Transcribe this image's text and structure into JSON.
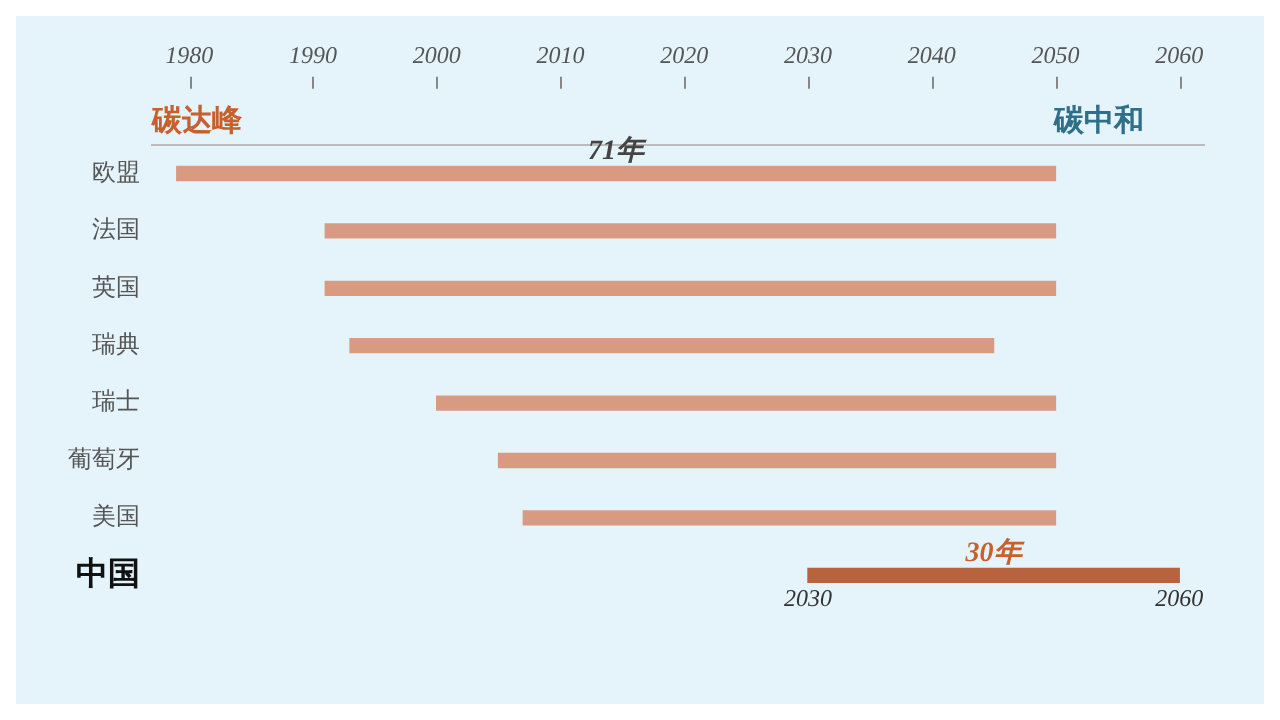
{
  "chart_data": {
    "type": "bar",
    "orientation": "horizontal",
    "categories": [
      "欧盟",
      "法国",
      "英国",
      "瑞典",
      "瑞士",
      "葡萄牙",
      "美国",
      "中国"
    ],
    "base": [
      1979,
      1991,
      1991,
      1993,
      2000,
      2005,
      2007,
      2030
    ],
    "values": [
      71,
      59,
      59,
      52,
      50,
      45,
      43,
      30
    ],
    "colors": [
      "#d99a82",
      "#d99a82",
      "#d99a82",
      "#d99a82",
      "#d99a82",
      "#d99a82",
      "#d99a82",
      "#b8623e"
    ],
    "xlim": [
      1977,
      2062
    ],
    "xticks": [
      1980,
      1990,
      2000,
      2010,
      2020,
      2030,
      2040,
      2050,
      2060
    ],
    "grid": false,
    "annotations": [
      "碳达峰",
      "碳中和",
      {
        "text": "71年",
        "x": 2014.5,
        "y": "欧盟"
      },
      {
        "text": "30年",
        "x": 2045,
        "y": "中国"
      },
      {
        "text": "2030",
        "x": 2030,
        "y": "中国"
      },
      {
        "text": "2060",
        "x": 2060,
        "y": "中国"
      }
    ]
  }
}
